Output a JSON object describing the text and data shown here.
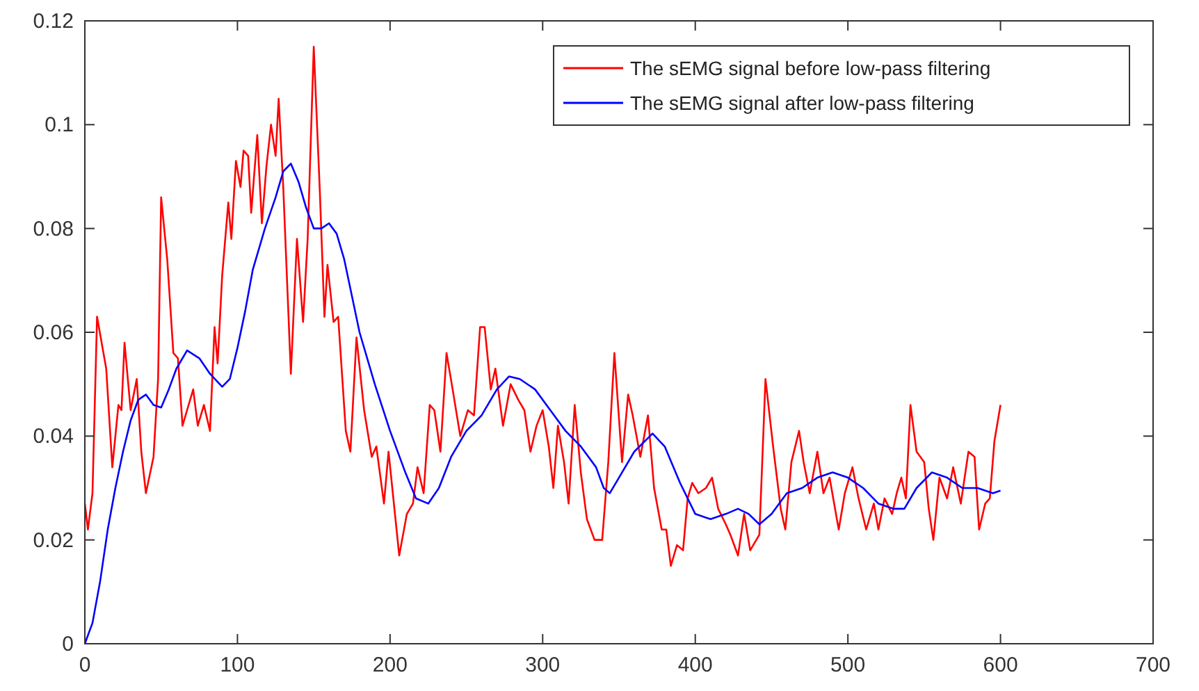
{
  "chart_data": {
    "type": "line",
    "xlim": [
      0,
      700
    ],
    "xticks": [
      0,
      100,
      200,
      300,
      400,
      500,
      600,
      700
    ],
    "ylim": [
      0,
      0.12
    ],
    "yticks": [
      0,
      0.02,
      0.04,
      0.06,
      0.08,
      0.1,
      0.12
    ],
    "grid": false,
    "legend": "top right",
    "marker": "none",
    "line_style": "solid",
    "series": [
      {
        "name": "The sEMG signal before low-pass filtering",
        "color": "#ff0000",
        "x": [
          0,
          2,
          5,
          8,
          11,
          14,
          18,
          22,
          24,
          26,
          30,
          34,
          37,
          40,
          45,
          48,
          50,
          54,
          58,
          61,
          64,
          67,
          71,
          74,
          78,
          82,
          85,
          87,
          90,
          94,
          96,
          99,
          102,
          104,
          107,
          109,
          113,
          116,
          119,
          122,
          125,
          127,
          130,
          135,
          139,
          143,
          146,
          150,
          154,
          157,
          159,
          163,
          166,
          171,
          174,
          178,
          183,
          188,
          191,
          196,
          199,
          206,
          211,
          215,
          218,
          222,
          226,
          229,
          233,
          237,
          241,
          246,
          251,
          255,
          259,
          262,
          266,
          269,
          274,
          279,
          284,
          288,
          292,
          296,
          300,
          304,
          307,
          310,
          314,
          317,
          321,
          325,
          329,
          334,
          339,
          343,
          347,
          352,
          356,
          359,
          364,
          369,
          373,
          378,
          381,
          384,
          388,
          392,
          395,
          398,
          402,
          407,
          411,
          415,
          420,
          423,
          428,
          432,
          436,
          442,
          446,
          451,
          456,
          459,
          463,
          468,
          471,
          475,
          480,
          484,
          488,
          494,
          498,
          503,
          507,
          512,
          517,
          520,
          524,
          529,
          532,
          535,
          538,
          541,
          545,
          550,
          553,
          556,
          560,
          565,
          569,
          574,
          579,
          583,
          586,
          590,
          593,
          596,
          600
        ],
        "values": [
          0.027,
          0.022,
          0.029,
          0.063,
          0.058,
          0.053,
          0.034,
          0.046,
          0.045,
          0.058,
          0.045,
          0.051,
          0.037,
          0.029,
          0.036,
          0.051,
          0.086,
          0.074,
          0.056,
          0.055,
          0.042,
          0.045,
          0.049,
          0.042,
          0.046,
          0.041,
          0.061,
          0.054,
          0.071,
          0.085,
          0.078,
          0.093,
          0.088,
          0.095,
          0.094,
          0.083,
          0.098,
          0.081,
          0.092,
          0.1,
          0.094,
          0.105,
          0.088,
          0.052,
          0.078,
          0.062,
          0.078,
          0.115,
          0.087,
          0.063,
          0.073,
          0.062,
          0.063,
          0.041,
          0.037,
          0.059,
          0.045,
          0.036,
          0.038,
          0.027,
          0.037,
          0.017,
          0.025,
          0.027,
          0.034,
          0.029,
          0.046,
          0.045,
          0.037,
          0.056,
          0.049,
          0.04,
          0.045,
          0.044,
          0.061,
          0.061,
          0.049,
          0.053,
          0.042,
          0.05,
          0.047,
          0.045,
          0.037,
          0.042,
          0.045,
          0.038,
          0.03,
          0.042,
          0.035,
          0.027,
          0.046,
          0.033,
          0.024,
          0.02,
          0.02,
          0.035,
          0.056,
          0.035,
          0.048,
          0.044,
          0.036,
          0.044,
          0.03,
          0.022,
          0.022,
          0.015,
          0.019,
          0.018,
          0.028,
          0.031,
          0.029,
          0.03,
          0.032,
          0.026,
          0.023,
          0.021,
          0.017,
          0.025,
          0.018,
          0.021,
          0.051,
          0.038,
          0.026,
          0.022,
          0.035,
          0.041,
          0.035,
          0.029,
          0.037,
          0.029,
          0.032,
          0.022,
          0.029,
          0.034,
          0.028,
          0.022,
          0.027,
          0.022,
          0.028,
          0.025,
          0.029,
          0.032,
          0.028,
          0.046,
          0.037,
          0.035,
          0.026,
          0.02,
          0.032,
          0.028,
          0.034,
          0.027,
          0.037,
          0.036,
          0.022,
          0.027,
          0.028,
          0.039,
          0.046
        ]
      },
      {
        "name": "The sEMG signal after low-pass filtering",
        "color": "#0000ff",
        "x": [
          0,
          5,
          10,
          15,
          20,
          25,
          30,
          35,
          40,
          45,
          50,
          55,
          60,
          67,
          75,
          82,
          90,
          95,
          100,
          105,
          110,
          118,
          125,
          130,
          135,
          140,
          145,
          150,
          155,
          160,
          165,
          170,
          175,
          180,
          190,
          200,
          210,
          217,
          225,
          232,
          240,
          250,
          260,
          270,
          278,
          285,
          295,
          305,
          315,
          325,
          335,
          340,
          344,
          350,
          360,
          372,
          380,
          390,
          400,
          410,
          420,
          428,
          435,
          442,
          450,
          460,
          470,
          480,
          490,
          500,
          510,
          520,
          530,
          537,
          545,
          555,
          565,
          575,
          585,
          595,
          600
        ],
        "values": [
          0,
          0.004,
          0.012,
          0.022,
          0.03,
          0.037,
          0.043,
          0.047,
          0.048,
          0.046,
          0.0455,
          0.049,
          0.053,
          0.0565,
          0.055,
          0.052,
          0.0495,
          0.051,
          0.057,
          0.064,
          0.072,
          0.08,
          0.086,
          0.091,
          0.0925,
          0.089,
          0.084,
          0.08,
          0.08,
          0.081,
          0.079,
          0.074,
          0.067,
          0.06,
          0.05,
          0.041,
          0.033,
          0.028,
          0.027,
          0.03,
          0.036,
          0.041,
          0.044,
          0.049,
          0.0515,
          0.051,
          0.049,
          0.045,
          0.041,
          0.038,
          0.034,
          0.03,
          0.029,
          0.032,
          0.037,
          0.0405,
          0.038,
          0.031,
          0.025,
          0.024,
          0.025,
          0.026,
          0.025,
          0.023,
          0.025,
          0.029,
          0.03,
          0.032,
          0.033,
          0.032,
          0.03,
          0.027,
          0.026,
          0.026,
          0.03,
          0.033,
          0.032,
          0.03,
          0.03,
          0.029,
          0.0295
        ]
      }
    ]
  }
}
